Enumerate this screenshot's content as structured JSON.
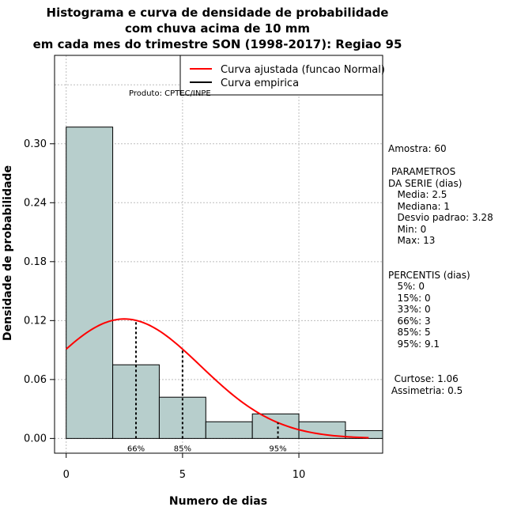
{
  "chart_data": {
    "type": "bar",
    "title_lines": [
      "Histograma e curva de densidade de probabilidade",
      "com chuva acima de 10 mm",
      "em cada mes do trimestre SON (1998-2017): Regiao 95"
    ],
    "xlabel": "Numero de dias",
    "ylabel": "Densidade de probabilidade",
    "xlim": [
      -0.5,
      13.6
    ],
    "ylim": [
      -0.015,
      0.39
    ],
    "x_ticks": [
      0,
      5,
      10
    ],
    "x_tick_labels": [
      "0",
      "5",
      "10"
    ],
    "y_ticks": [
      0,
      0.06,
      0.12,
      0.18,
      0.24,
      0.3
    ],
    "y_tick_labels": [
      "0.00",
      "0.06",
      "0.12",
      "0.18",
      "0.24",
      "0.30"
    ],
    "grid": true,
    "bins": [
      {
        "x0": 0,
        "x1": 2,
        "density": 0.317
      },
      {
        "x0": 2,
        "x1": 4,
        "density": 0.075
      },
      {
        "x0": 4,
        "x1": 6,
        "density": 0.042
      },
      {
        "x0": 6,
        "x1": 8,
        "density": 0.017
      },
      {
        "x0": 8,
        "x1": 10,
        "density": 0.025
      },
      {
        "x0": 10,
        "x1": 12,
        "density": 0.017
      },
      {
        "x0": 12,
        "x1": 14,
        "density": 0.008
      }
    ],
    "fit_curve": {
      "name": "Curva ajustada (funcao Normal)",
      "mean": 2.5,
      "sd": 3.28,
      "x_from": 0,
      "x_to": 13,
      "color": "#ff0000"
    },
    "empirical_curve": {
      "name": "Curva empirica",
      "color": "#000000"
    },
    "percentile_markers": [
      {
        "label": "66%",
        "x": 3
      },
      {
        "label": "85%",
        "x": 5
      },
      {
        "label": "95%",
        "x": 9.1
      }
    ],
    "bar_color": "#b7cecc",
    "legend_position": "top-right",
    "credit": "Produto: CPTEC/INPE"
  },
  "stats_panel": {
    "lines": [
      "Amostra: 60",
      " PARAMETROS",
      "DA SERIE (dias)",
      "   Media: 2.5",
      "   Mediana: 1",
      "   Desvio padrao: 3.28",
      "   Min: 0",
      "   Max: 13",
      "PERCENTIS (dias)",
      "   5%: 0",
      "   15%: 0",
      "   33%: 0",
      "   66%: 3",
      "   85%: 5",
      "   95%: 9.1",
      "  Curtose: 1.06",
      " Assimetria: 0.5"
    ]
  }
}
